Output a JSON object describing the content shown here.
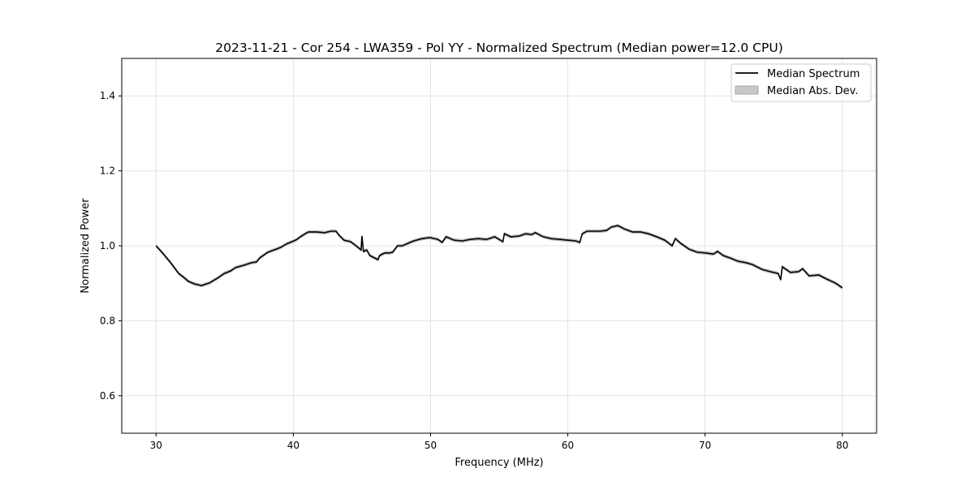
{
  "chart_data": {
    "type": "line",
    "title": "2023-11-21 - Cor 254 - LWA359 - Pol YY - Normalized Spectrum (Median power=12.0 CPU)",
    "xlabel": "Frequency (MHz)",
    "ylabel": "Normalized Power",
    "xlim": [
      27.5,
      82.5
    ],
    "ylim": [
      0.5,
      1.5
    ],
    "xticks": [
      30,
      40,
      50,
      60,
      70,
      80
    ],
    "yticks": [
      0.6,
      0.8,
      1.0,
      1.2,
      1.4
    ],
    "xtick_labels": [
      "30",
      "40",
      "50",
      "60",
      "70",
      "80"
    ],
    "ytick_labels": [
      "0.6",
      "0.8",
      "1.0",
      "1.2",
      "1.4"
    ],
    "grid": true,
    "legend_position": "top-right",
    "legend": [
      "Median Spectrum",
      "Median Abs. Dev."
    ],
    "band_halfwidth": 0.004,
    "colors": {
      "line": "#000000",
      "band": "#c8c8c8"
    },
    "series": [
      {
        "name": "Median Spectrum",
        "x": [
          30.0,
          30.47,
          31.06,
          31.65,
          32.01,
          32.36,
          32.83,
          33.31,
          33.9,
          34.49,
          34.72,
          34.96,
          35.43,
          35.79,
          36.38,
          36.97,
          37.32,
          37.56,
          38.15,
          38.74,
          39.09,
          39.56,
          39.92,
          40.27,
          40.51,
          40.86,
          41.1,
          41.69,
          42.28,
          42.75,
          43.11,
          43.34,
          43.7,
          44.17,
          44.64,
          44.94,
          45.0,
          45.11,
          45.35,
          45.58,
          46.17,
          46.29,
          46.65,
          47.0,
          47.24,
          47.59,
          47.95,
          48.18,
          48.77,
          49.36,
          49.95,
          50.54,
          50.84,
          51.13,
          51.72,
          52.31,
          52.9,
          53.5,
          54.09,
          54.68,
          55.27,
          55.38,
          55.86,
          56.45,
          56.92,
          57.39,
          57.63,
          58.22,
          58.81,
          59.4,
          59.99,
          60.58,
          60.87,
          61.05,
          61.4,
          62.35,
          62.82,
          63.18,
          63.65,
          64.12,
          64.71,
          65.3,
          65.89,
          66.48,
          67.07,
          67.6,
          67.84,
          68.25,
          68.84,
          69.43,
          70.02,
          70.61,
          70.91,
          71.32,
          71.79,
          72.38,
          72.98,
          73.45,
          74.16,
          74.75,
          75.34,
          75.51,
          75.63,
          76.22,
          76.81,
          77.11,
          77.58,
          78.29,
          78.88,
          79.47,
          80.0
        ],
        "y": [
          1.0,
          0.981,
          0.955,
          0.926,
          0.916,
          0.905,
          0.898,
          0.894,
          0.901,
          0.914,
          0.92,
          0.926,
          0.933,
          0.942,
          0.948,
          0.955,
          0.957,
          0.968,
          0.983,
          0.991,
          0.996,
          1.006,
          1.011,
          1.017,
          1.024,
          1.032,
          1.037,
          1.037,
          1.035,
          1.039,
          1.039,
          1.028,
          1.015,
          1.011,
          0.998,
          0.989,
          1.026,
          0.985,
          0.989,
          0.974,
          0.963,
          0.974,
          0.981,
          0.981,
          0.983,
          1.0,
          1.0,
          1.004,
          1.013,
          1.019,
          1.022,
          1.017,
          1.009,
          1.024,
          1.015,
          1.013,
          1.017,
          1.019,
          1.017,
          1.024,
          1.011,
          1.032,
          1.024,
          1.026,
          1.032,
          1.03,
          1.035,
          1.024,
          1.019,
          1.017,
          1.015,
          1.013,
          1.009,
          1.032,
          1.039,
          1.039,
          1.041,
          1.05,
          1.054,
          1.045,
          1.037,
          1.037,
          1.032,
          1.024,
          1.015,
          1.0,
          1.019,
          1.006,
          0.991,
          0.983,
          0.981,
          0.978,
          0.985,
          0.974,
          0.968,
          0.959,
          0.955,
          0.95,
          0.937,
          0.931,
          0.926,
          0.909,
          0.944,
          0.929,
          0.931,
          0.939,
          0.92,
          0.922,
          0.911,
          0.901,
          0.888
        ]
      }
    ]
  }
}
